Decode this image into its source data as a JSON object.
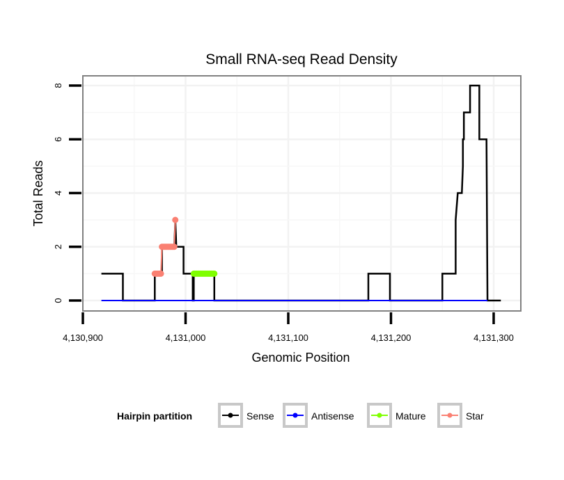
{
  "chart_data": {
    "type": "line",
    "title": "Small RNA-seq Read Density",
    "xlabel": "Genomic Position",
    "ylabel": "Total Reads",
    "xlim": [
      4130875,
      4131325
    ],
    "ylim": [
      -0.4,
      8.4
    ],
    "x_ticks": [
      4130900,
      4131000,
      4131100,
      4131200,
      4131300
    ],
    "x_tick_labels": [
      "4,130,900",
      "4,131,000",
      "4,131,100",
      "4,131,200",
      "4,131,300"
    ],
    "y_ticks": [
      0,
      2,
      4,
      6,
      8
    ],
    "y_tick_labels": [
      "0",
      "2",
      "4",
      "6",
      "8"
    ],
    "grid": true,
    "legend": {
      "title": "Hairpin partition",
      "placement": "bottom",
      "entries": [
        {
          "label": "Sense",
          "color": "#000000"
        },
        {
          "label": "Antisense",
          "color": "#0000ff"
        },
        {
          "label": "Mature",
          "color": "#7fff00"
        },
        {
          "label": "Star",
          "color": "#fa8072"
        }
      ]
    },
    "series": [
      {
        "name": "Sense",
        "color": "#000000",
        "x": [
          4130918,
          4130939,
          4130939,
          4130970,
          4130970,
          4130977,
          4130977,
          4130989,
          4130990,
          4130991,
          4130998,
          4130998,
          4131007,
          4131007,
          4131008,
          4131008,
          4131028,
          4131028,
          4131178,
          4131178,
          4131199,
          4131199,
          4131250,
          4131250,
          4131263,
          4131263,
          4131265,
          4131265,
          4131269,
          4131270,
          4131270,
          4131271,
          4131271,
          4131273,
          4131273,
          4131277,
          4131277,
          4131286,
          4131286,
          4131293,
          4131294,
          4131307
        ],
        "y": [
          1,
          1,
          0,
          0,
          1,
          1,
          2,
          2,
          3,
          2,
          2,
          1,
          1,
          0,
          0,
          1,
          1,
          0,
          0,
          1,
          1,
          0,
          0,
          1,
          1,
          3,
          4,
          4,
          4,
          5,
          6,
          6,
          7,
          7,
          7,
          7,
          8,
          8,
          6,
          6,
          0,
          0
        ]
      },
      {
        "name": "Antisense",
        "color": "#0000ff",
        "x": [
          4130918,
          4131294
        ],
        "y": [
          0,
          0
        ]
      },
      {
        "name": "Mature",
        "color": "#7fff00",
        "x": [
          4131008,
          4131009,
          4131010,
          4131011,
          4131012,
          4131013,
          4131014,
          4131015,
          4131016,
          4131017,
          4131018,
          4131019,
          4131020,
          4131021,
          4131022,
          4131023,
          4131024,
          4131025,
          4131026,
          4131027,
          4131028
        ],
        "y": [
          1,
          1,
          1,
          1,
          1,
          1,
          1,
          1,
          1,
          1,
          1,
          1,
          1,
          1,
          1,
          1,
          1,
          1,
          1,
          1,
          1
        ]
      },
      {
        "name": "Star",
        "color": "#fa8072",
        "x": [
          4130970,
          4130971,
          4130972,
          4130973,
          4130974,
          4130975,
          4130976,
          4130977,
          4130978,
          4130979,
          4130980,
          4130981,
          4130982,
          4130983,
          4130984,
          4130985,
          4130986,
          4130987,
          4130988,
          4130989,
          4130990
        ],
        "y": [
          1,
          1,
          1,
          1,
          1,
          1,
          1,
          2,
          2,
          2,
          2,
          2,
          2,
          2,
          2,
          2,
          2,
          2,
          2,
          2,
          3
        ]
      }
    ]
  }
}
